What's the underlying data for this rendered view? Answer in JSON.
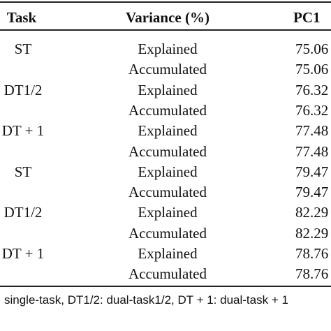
{
  "table": {
    "header": [
      "Task",
      "Variance (%)",
      "PC1"
    ],
    "rows": [
      {
        "task": "ST",
        "variance": "Explained",
        "pc1": "75.06"
      },
      {
        "variance": "Accumulated",
        "pc1": "75.06"
      },
      {
        "task": "DT1/2",
        "variance": "Explained",
        "pc1": "76.32"
      },
      {
        "variance": "Accumulated",
        "pc1": "76.32"
      },
      {
        "task": "DT + 1",
        "variance": "Explained",
        "pc1": "77.48"
      },
      {
        "variance": "Accumulated",
        "pc1": "77.48"
      },
      {
        "task": "ST",
        "variance": "Explained",
        "pc1": "79.47"
      },
      {
        "variance": "Accumulated",
        "pc1": "79.47"
      },
      {
        "task": "DT1/2",
        "variance": "Explained",
        "pc1": "82.29"
      },
      {
        "variance": "Accumulated",
        "pc1": "82.29"
      },
      {
        "task": "DT + 1",
        "variance": "Explained",
        "pc1": "78.76"
      },
      {
        "variance": "Accumulated",
        "pc1": "78.76"
      }
    ],
    "footnote": "single-task, DT1/2: dual-task1/2, DT + 1: dual-task + 1"
  }
}
